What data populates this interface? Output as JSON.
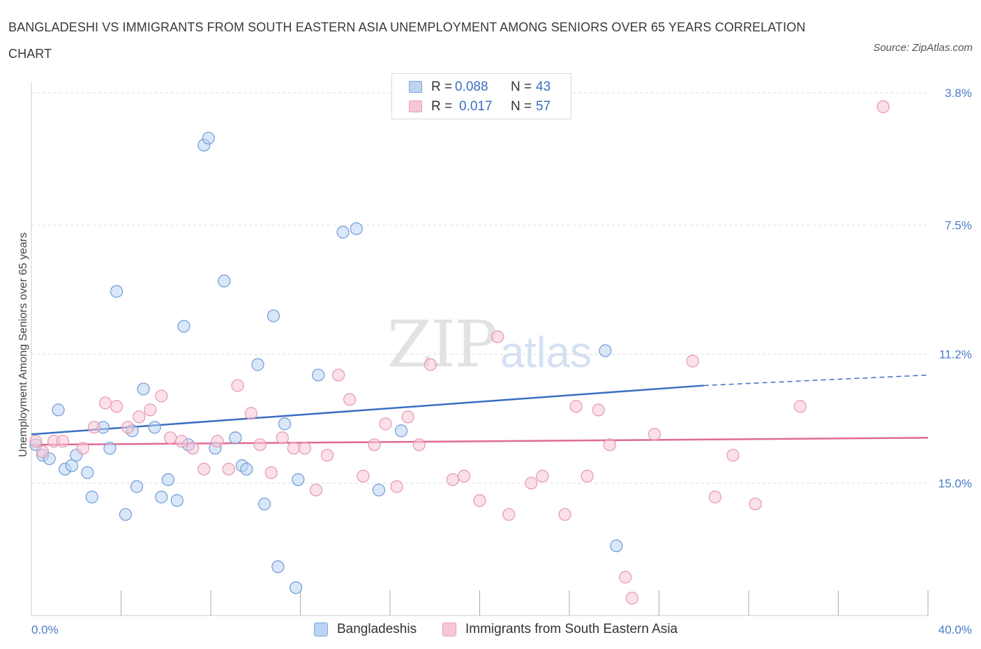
{
  "title": "BANGLADESHI VS IMMIGRANTS FROM SOUTH EASTERN ASIA UNEMPLOYMENT AMONG SENIORS OVER 65 YEARS CORRELATION CHART",
  "source": "Source: ZipAtlas.com",
  "watermark": {
    "zip": "ZIP",
    "atlas": "atlas"
  },
  "legend": {
    "rows": [
      {
        "r_label": "R =",
        "r_value": "0.088",
        "n_label": "N =",
        "n_value": "43"
      },
      {
        "r_label": "R =",
        "r_value": "0.017",
        "n_label": "N =",
        "n_value": "57"
      }
    ]
  },
  "bottom_legend": {
    "series_a": "Bangladeshis",
    "series_b": "Immigrants from South Eastern Asia"
  },
  "axis": {
    "x_min_label": "0.0%",
    "x_max_label": "40.0%",
    "ylabel": "Unemployment Among Seniors over 65 years",
    "y_ticks": [
      "15.0%",
      "11.2%",
      "7.5%",
      "3.8%"
    ]
  },
  "colors": {
    "blue": "#3b6fc2",
    "blue_fill": "#bcd3f2",
    "pink": "#e06a93",
    "pink_fill": "#f7c6d6",
    "grid": "#dddddd"
  },
  "chart_data": {
    "type": "scatter",
    "title": "BANGLADESHI VS IMMIGRANTS FROM SOUTH EASTERN ASIA UNEMPLOYMENT AMONG SENIORS OVER 65 YEARS CORRELATION CHART",
    "xlabel": "",
    "ylabel": "Unemployment Among Seniors over 65 years",
    "xlim": [
      0,
      40
    ],
    "ylim": [
      0,
      15
    ],
    "y_ticks": [
      3.8,
      7.5,
      11.2,
      15.0
    ],
    "grid": true,
    "legend_placement": "top-center",
    "series": [
      {
        "name": "Bangladeshis",
        "color": "#3b6fc2",
        "R": 0.088,
        "N": 43,
        "trend": {
          "x": [
            0,
            30
          ],
          "y": [
            5.2,
            6.6
          ],
          "dashed_to": [
            40,
            6.9
          ]
        },
        "points": [
          [
            0.2,
            4.9
          ],
          [
            0.5,
            4.6
          ],
          [
            0.8,
            4.5
          ],
          [
            1.2,
            5.9
          ],
          [
            1.5,
            4.2
          ],
          [
            1.8,
            4.3
          ],
          [
            2.0,
            4.6
          ],
          [
            2.5,
            4.1
          ],
          [
            2.7,
            3.4
          ],
          [
            3.2,
            5.4
          ],
          [
            3.5,
            4.8
          ],
          [
            3.8,
            9.3
          ],
          [
            4.2,
            2.9
          ],
          [
            4.5,
            5.3
          ],
          [
            4.7,
            3.7
          ],
          [
            5.0,
            6.5
          ],
          [
            5.5,
            5.4
          ],
          [
            5.8,
            3.4
          ],
          [
            6.1,
            3.9
          ],
          [
            6.5,
            3.3
          ],
          [
            6.8,
            8.3
          ],
          [
            7.0,
            4.9
          ],
          [
            7.7,
            13.5
          ],
          [
            7.9,
            13.7
          ],
          [
            8.2,
            4.8
          ],
          [
            8.6,
            9.6
          ],
          [
            9.1,
            5.1
          ],
          [
            9.4,
            4.3
          ],
          [
            9.6,
            4.2
          ],
          [
            10.1,
            7.2
          ],
          [
            10.4,
            3.2
          ],
          [
            10.8,
            8.6
          ],
          [
            11.0,
            1.4
          ],
          [
            11.3,
            5.5
          ],
          [
            11.8,
            0.8
          ],
          [
            11.9,
            3.9
          ],
          [
            12.8,
            6.9
          ],
          [
            13.9,
            11.0
          ],
          [
            14.5,
            11.1
          ],
          [
            15.5,
            3.6
          ],
          [
            16.5,
            5.3
          ],
          [
            25.6,
            7.6
          ],
          [
            26.1,
            2.0
          ]
        ]
      },
      {
        "name": "Immigrants from South Eastern Asia",
        "color": "#e06a93",
        "R": 0.017,
        "N": 57,
        "trend": {
          "x": [
            0,
            40
          ],
          "y": [
            4.9,
            5.1
          ]
        },
        "points": [
          [
            0.2,
            5.0
          ],
          [
            0.5,
            4.7
          ],
          [
            1.0,
            5.0
          ],
          [
            1.4,
            5.0
          ],
          [
            2.3,
            4.8
          ],
          [
            2.8,
            5.4
          ],
          [
            3.3,
            6.1
          ],
          [
            3.8,
            6.0
          ],
          [
            4.3,
            5.4
          ],
          [
            4.8,
            5.7
          ],
          [
            5.3,
            5.9
          ],
          [
            5.8,
            6.3
          ],
          [
            6.2,
            5.1
          ],
          [
            6.7,
            5.0
          ],
          [
            7.2,
            4.8
          ],
          [
            7.7,
            4.2
          ],
          [
            8.3,
            5.0
          ],
          [
            8.8,
            4.2
          ],
          [
            9.2,
            6.6
          ],
          [
            9.8,
            5.8
          ],
          [
            10.2,
            4.9
          ],
          [
            10.7,
            4.1
          ],
          [
            11.2,
            5.1
          ],
          [
            11.7,
            4.8
          ],
          [
            12.2,
            4.8
          ],
          [
            12.7,
            3.6
          ],
          [
            13.2,
            4.6
          ],
          [
            13.7,
            6.9
          ],
          [
            14.2,
            6.2
          ],
          [
            14.8,
            4.0
          ],
          [
            15.3,
            4.9
          ],
          [
            15.8,
            5.5
          ],
          [
            16.3,
            3.7
          ],
          [
            16.8,
            5.7
          ],
          [
            17.3,
            4.9
          ],
          [
            17.8,
            7.2
          ],
          [
            18.8,
            3.9
          ],
          [
            19.3,
            4.0
          ],
          [
            20.0,
            3.3
          ],
          [
            20.8,
            8.0
          ],
          [
            21.3,
            2.9
          ],
          [
            22.3,
            3.8
          ],
          [
            22.8,
            4.0
          ],
          [
            23.8,
            2.9
          ],
          [
            24.3,
            6.0
          ],
          [
            24.8,
            4.0
          ],
          [
            25.3,
            5.9
          ],
          [
            25.8,
            4.9
          ],
          [
            26.5,
            1.1
          ],
          [
            26.8,
            0.5
          ],
          [
            27.8,
            5.2
          ],
          [
            29.5,
            7.3
          ],
          [
            30.5,
            3.4
          ],
          [
            31.3,
            4.6
          ],
          [
            32.3,
            3.2
          ],
          [
            34.3,
            6.0
          ],
          [
            38.0,
            14.6
          ]
        ]
      }
    ]
  }
}
